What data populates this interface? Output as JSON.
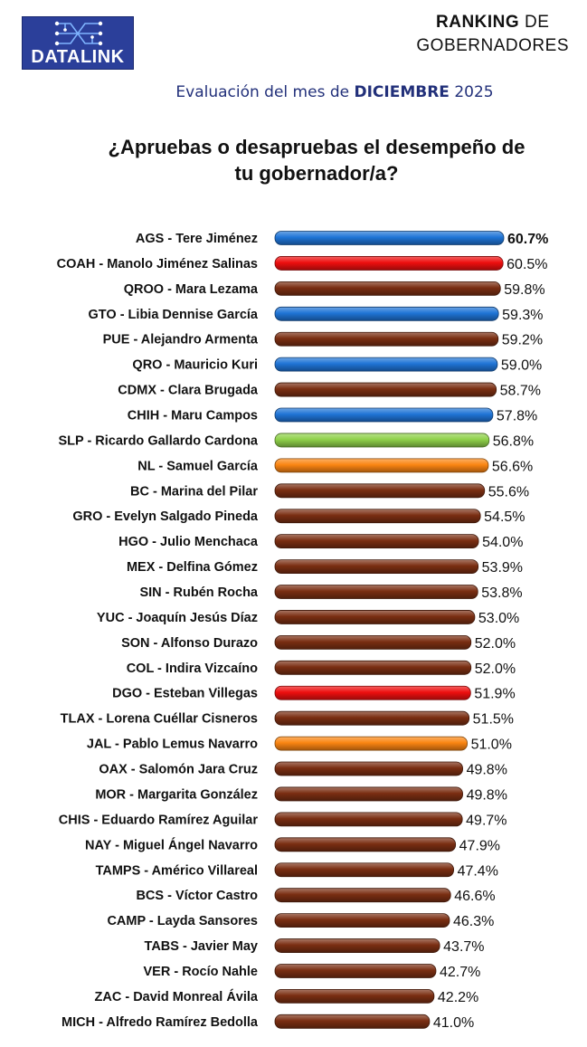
{
  "header": {
    "logo_text": "DATALINK",
    "ranking_bold": "RANKING",
    "ranking_rest": " DE",
    "subtitle": "GOBERNADORES",
    "eval_prefix": "Evaluación del mes de ",
    "eval_month": "DICIEMBRE",
    "eval_year": " 2025",
    "question_line1": "¿Apruebas o desapruebas el desempeño de",
    "question_line2": "tu gobernador/a?"
  },
  "colors": {
    "blue": "#1f74d6",
    "red": "#ee0f0f",
    "brown": "#7a2e12",
    "green": "#8fd14a",
    "orange": "#fa8512"
  },
  "chart_data": {
    "type": "bar",
    "orientation": "horizontal",
    "xlim": [
      0,
      60.7
    ],
    "value_suffix": "%",
    "categories": [
      "AGS - Tere Jiménez",
      "COAH - Manolo Jiménez Salinas",
      "QROO - Mara Lezama",
      "GTO - Libia Dennise García",
      "PUE - Alejandro Armenta",
      "QRO - Mauricio Kuri",
      "CDMX - Clara Brugada",
      "CHIH - Maru Campos",
      "SLP - Ricardo Gallardo Cardona",
      "NL - Samuel García",
      "BC - Marina del Pilar",
      "GRO - Evelyn Salgado Pineda",
      "HGO - Julio Menchaca",
      "MEX - Delfina Gómez",
      "SIN - Rubén Rocha",
      "YUC - Joaquín Jesús Díaz",
      "SON - Alfonso Durazo",
      "COL - Indira Vizcaíno",
      "DGO - Esteban Villegas",
      "TLAX - Lorena Cuéllar Cisneros",
      "JAL - Pablo Lemus Navarro",
      "OAX - Salomón Jara Cruz",
      "MOR - Margarita González",
      "CHIS - Eduardo Ramírez Aguilar",
      "NAY - Miguel Ángel Navarro",
      "TAMPS - Américo Villareal",
      "BCS - Víctor Castro",
      "CAMP - Layda Sansores",
      "TABS -  Javier May",
      "VER - Rocío Nahle",
      "ZAC - David Monreal Ávila",
      "MICH - Alfredo Ramírez Bedolla"
    ],
    "values": [
      60.7,
      60.5,
      59.8,
      59.3,
      59.2,
      59.0,
      58.7,
      57.8,
      56.8,
      56.6,
      55.6,
      54.5,
      54.0,
      53.9,
      53.8,
      53.0,
      52.0,
      52.0,
      51.9,
      51.5,
      51.0,
      49.8,
      49.8,
      49.7,
      47.9,
      47.4,
      46.6,
      46.3,
      43.7,
      42.7,
      42.2,
      41.0
    ],
    "value_labels": [
      "60.7%",
      "60.5%",
      "59.8%",
      "59.3%",
      "59.2%",
      "59.0%",
      "58.7%",
      "57.8%",
      "56.8%",
      "56.6%",
      "55.6%",
      "54.5%",
      "54.0%",
      "53.9%",
      "53.8%",
      "53.0%",
      "52.0%",
      "52.0%",
      "51.9%",
      "51.5%",
      "51.0%",
      "49.8%",
      "49.8%",
      "49.7%",
      "47.9%",
      "47.4%",
      "46.6%",
      "46.3%",
      "43.7%",
      "42.7%",
      "42.2%",
      "41.0%"
    ],
    "bar_colors": [
      "blue",
      "red",
      "brown",
      "blue",
      "brown",
      "blue",
      "brown",
      "blue",
      "green",
      "orange",
      "brown",
      "brown",
      "brown",
      "brown",
      "brown",
      "brown",
      "brown",
      "brown",
      "red",
      "brown",
      "orange",
      "brown",
      "brown",
      "brown",
      "brown",
      "brown",
      "brown",
      "brown",
      "brown",
      "brown",
      "brown",
      "brown"
    ]
  }
}
